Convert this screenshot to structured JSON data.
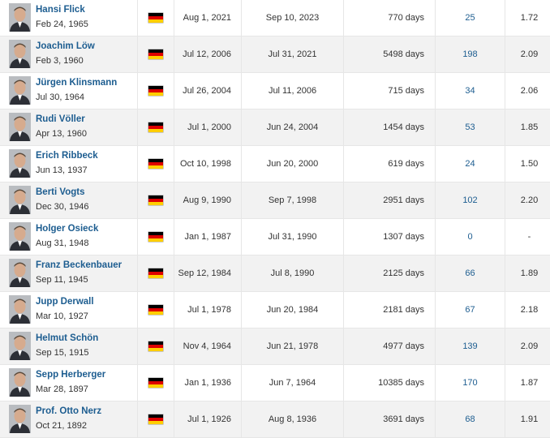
{
  "table": {
    "rows": [
      {
        "name": "Hansi Flick",
        "dob": "Feb 24, 1965",
        "nationality_icon": "germany-flag-icon",
        "from": "Aug 1, 2021",
        "to": "Sep 10, 2023",
        "days": "770 days",
        "matches": "25",
        "ppm": "1.72"
      },
      {
        "name": "Joachim Löw",
        "dob": "Feb 3, 1960",
        "nationality_icon": "germany-flag-icon",
        "from": "Jul 12, 2006",
        "to": "Jul 31, 2021",
        "days": "5498 days",
        "matches": "198",
        "ppm": "2.09"
      },
      {
        "name": "Jürgen Klinsmann",
        "dob": "Jul 30, 1964",
        "nationality_icon": "germany-flag-icon",
        "from": "Jul 26, 2004",
        "to": "Jul 11, 2006",
        "days": "715 days",
        "matches": "34",
        "ppm": "2.06"
      },
      {
        "name": "Rudi Völler",
        "dob": "Apr 13, 1960",
        "nationality_icon": "germany-flag-icon",
        "from": "Jul 1, 2000",
        "to": "Jun 24, 2004",
        "days": "1454 days",
        "matches": "53",
        "ppm": "1.85"
      },
      {
        "name": "Erich Ribbeck",
        "dob": "Jun 13, 1937",
        "nationality_icon": "germany-flag-icon",
        "from": "Oct 10, 1998",
        "to": "Jun 20, 2000",
        "days": "619 days",
        "matches": "24",
        "ppm": "1.50"
      },
      {
        "name": "Berti Vogts",
        "dob": "Dec 30, 1946",
        "nationality_icon": "germany-flag-icon",
        "from": "Aug 9, 1990",
        "to": "Sep 7, 1998",
        "days": "2951 days",
        "matches": "102",
        "ppm": "2.20"
      },
      {
        "name": "Holger Osieck",
        "dob": "Aug 31, 1948",
        "nationality_icon": "germany-flag-icon",
        "from": "Jan 1, 1987",
        "to": "Jul 31, 1990",
        "days": "1307 days",
        "matches": "0",
        "ppm": "-"
      },
      {
        "name": "Franz Beckenbauer",
        "dob": "Sep 11, 1945",
        "nationality_icon": "germany-flag-icon",
        "from": "Sep 12, 1984",
        "to": "Jul 8, 1990",
        "days": "2125 days",
        "matches": "66",
        "ppm": "1.89"
      },
      {
        "name": "Jupp Derwall",
        "dob": "Mar 10, 1927",
        "nationality_icon": "germany-flag-icon",
        "from": "Jul 1, 1978",
        "to": "Jun 20, 1984",
        "days": "2181 days",
        "matches": "67",
        "ppm": "2.18"
      },
      {
        "name": "Helmut Schön",
        "dob": "Sep 15, 1915",
        "nationality_icon": "germany-flag-icon",
        "from": "Nov 4, 1964",
        "to": "Jun 21, 1978",
        "days": "4977 days",
        "matches": "139",
        "ppm": "2.09"
      },
      {
        "name": "Sepp Herberger",
        "dob": "Mar 28, 1897",
        "nationality_icon": "germany-flag-icon",
        "from": "Jan 1, 1936",
        "to": "Jun 7, 1964",
        "days": "10385 days",
        "matches": "170",
        "ppm": "1.87"
      },
      {
        "name": "Prof. Otto Nerz",
        "dob": "Oct 21, 1892",
        "nationality_icon": "germany-flag-icon",
        "from": "Jul 1, 1926",
        "to": "Aug 8, 1936",
        "days": "3691 days",
        "matches": "68",
        "ppm": "1.91"
      }
    ]
  },
  "colors": {
    "link": "#1d5d90",
    "row_alt": "#f2f2f2",
    "border": "#e6e6e6"
  }
}
